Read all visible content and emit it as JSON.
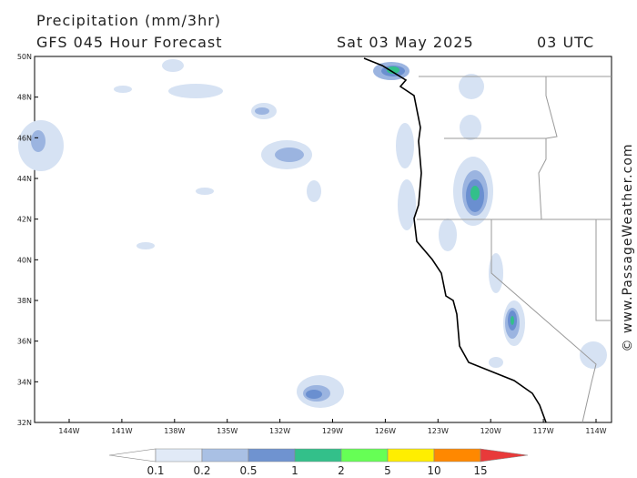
{
  "header": {
    "title": "Precipitation (mm/3hr)",
    "forecast": "GFS 045 Hour Forecast",
    "date": "Sat 03 May 2025",
    "time": "03 UTC"
  },
  "map": {
    "lat_labels": [
      "50N",
      "48N",
      "46N",
      "44N",
      "42N",
      "40N",
      "38N",
      "36N",
      "34N",
      "32N"
    ],
    "lon_labels": [
      "144W",
      "141W",
      "138W",
      "135W",
      "132W",
      "129W",
      "126W",
      "123W",
      "120W",
      "117W",
      "114W"
    ]
  },
  "colorbar": {
    "labels": [
      "0.1",
      "0.2",
      "0.5",
      "1",
      "2",
      "5",
      "10",
      "15"
    ]
  },
  "watermark": "© www.PassageWeather.com"
}
